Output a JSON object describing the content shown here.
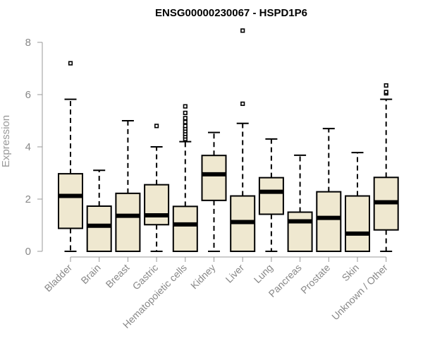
{
  "chart_data": {
    "type": "boxplot",
    "title": "ENSG00000230067 - HSPD1P6",
    "ylabel": "Expression",
    "xlabel": "",
    "ylim": [
      0,
      8.4
    ],
    "yticks": [
      0,
      2,
      4,
      6,
      8
    ],
    "grid": false,
    "legend": "none",
    "box_fill": "#efe8d0",
    "categories": [
      "Bladder",
      "Brain",
      "Breast",
      "Gastric",
      "Hematopoietic cells",
      "Kidney",
      "Liver",
      "Lung",
      "Pancreas",
      "Prostate",
      "Skin",
      "Unknown / Other"
    ],
    "boxes": [
      {
        "min": 0,
        "q1": 0.88,
        "median": 2.12,
        "q3": 2.97,
        "max": 5.82,
        "outliers": [
          7.2
        ]
      },
      {
        "min": 0,
        "q1": 0,
        "median": 0.98,
        "q3": 1.73,
        "max": 3.1,
        "outliers": []
      },
      {
        "min": 0,
        "q1": 0,
        "median": 1.36,
        "q3": 2.22,
        "max": 5.0,
        "outliers": []
      },
      {
        "min": 0,
        "q1": 1.02,
        "median": 1.38,
        "q3": 2.55,
        "max": 4.0,
        "outliers": [
          4.8
        ]
      },
      {
        "min": 0,
        "q1": 0,
        "median": 1.03,
        "q3": 1.72,
        "max": 4.2,
        "outliers": [
          4.3,
          4.4,
          4.5,
          4.6,
          4.7,
          4.8,
          4.95,
          5.1,
          5.3,
          5.55
        ]
      },
      {
        "min": 0,
        "q1": 1.95,
        "median": 2.95,
        "q3": 3.67,
        "max": 4.55,
        "outliers": []
      },
      {
        "min": 0,
        "q1": 0,
        "median": 1.12,
        "q3": 2.12,
        "max": 4.9,
        "outliers": [
          5.65,
          8.45
        ]
      },
      {
        "min": 0,
        "q1": 1.42,
        "median": 2.28,
        "q3": 2.82,
        "max": 4.3,
        "outliers": []
      },
      {
        "min": 0,
        "q1": 0,
        "median": 1.15,
        "q3": 1.5,
        "max": 3.68,
        "outliers": []
      },
      {
        "min": 0,
        "q1": 0,
        "median": 1.28,
        "q3": 2.28,
        "max": 4.7,
        "outliers": []
      },
      {
        "min": 0,
        "q1": 0,
        "median": 0.68,
        "q3": 2.12,
        "max": 3.78,
        "outliers": []
      },
      {
        "min": 0,
        "q1": 0.82,
        "median": 1.88,
        "q3": 2.83,
        "max": 5.82,
        "outliers": [
          6.05,
          6.1,
          6.35
        ]
      }
    ]
  }
}
